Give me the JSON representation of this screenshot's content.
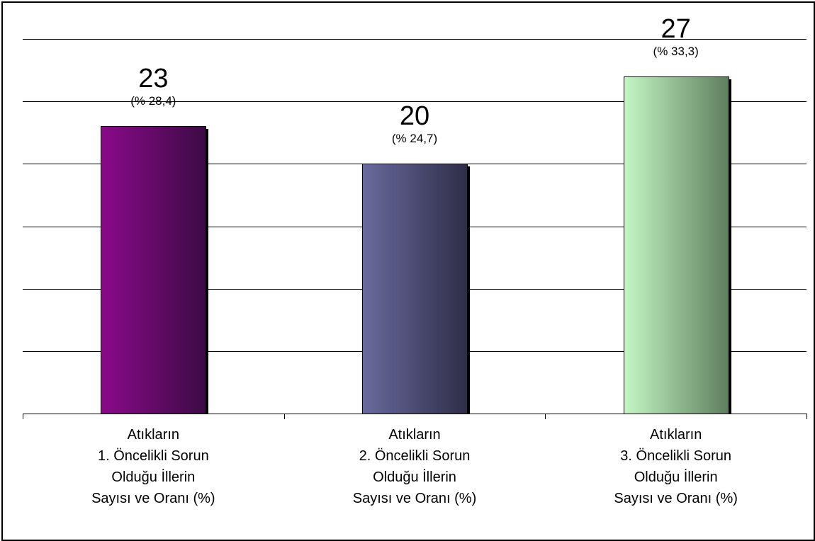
{
  "chart_data": {
    "type": "bar",
    "categories": [
      [
        "Atıkların",
        "1. Öncelikli Sorun",
        "Olduğu İllerin",
        "Sayısı ve Oranı (%)"
      ],
      [
        "Atıkların",
        "2. Öncelikli Sorun",
        "Olduğu İllerin",
        "Sayısı ve Oranı (%)"
      ],
      [
        "Atıkların",
        "3. Öncelikli Sorun",
        "Olduğu İllerin",
        "Sayısı ve Oranı (%)"
      ]
    ],
    "values": [
      23,
      20,
      27
    ],
    "value_labels": [
      "23",
      "20",
      "27"
    ],
    "percent_labels": [
      "(% 28,4)",
      "(% 24,7)",
      "(% 33,3)"
    ],
    "ylim": [
      0,
      30
    ],
    "grid": true,
    "legend": "none",
    "bar_colors": [
      [
        "#8a0a8a",
        "#3d0a45"
      ],
      [
        "#6a6a9e",
        "#2e2e48"
      ],
      [
        "#c4f7c4",
        "#5e7d5e"
      ]
    ],
    "gridline_color": "#000000",
    "shadow_color": "#000000"
  }
}
